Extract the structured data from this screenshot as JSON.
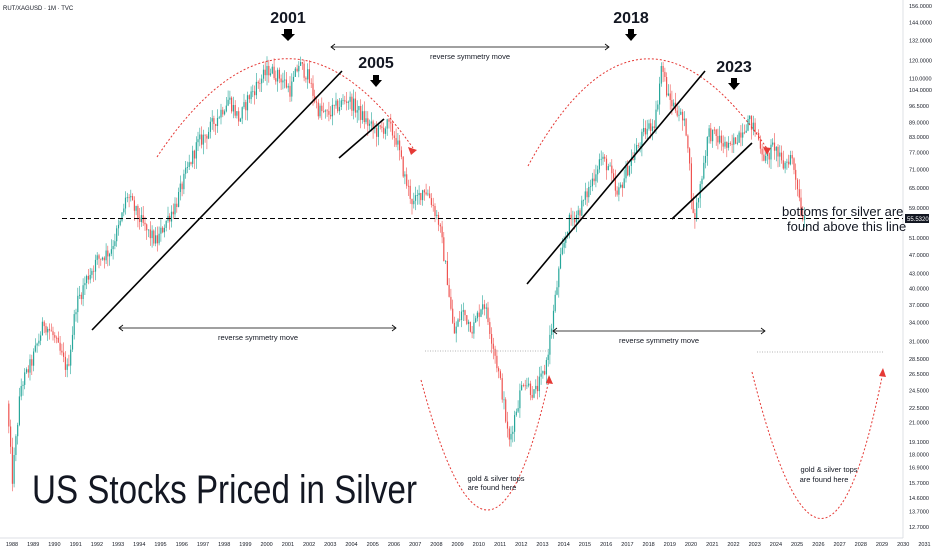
{
  "chart_data": {
    "type": "candlestick",
    "ticker": "RUT/XAGUSD · 1M · TVC",
    "title": "US Stocks Priced in Silver",
    "price_label": "55.5320",
    "yscale": "log",
    "y_ticks": [
      "156.0000",
      "144.0000",
      "132.0000",
      "120.0000",
      "110.0000",
      "104.0000",
      "96.5000",
      "89.0000",
      "83.0000",
      "77.0000",
      "71.0000",
      "65.0000",
      "59.0000",
      "55.5320",
      "51.0000",
      "47.0000",
      "43.0000",
      "40.0000",
      "37.0000",
      "34.0000",
      "31.0000",
      "28.5000",
      "26.5000",
      "24.5000",
      "22.5000",
      "21.0000",
      "19.1000",
      "18.0000",
      "16.9000",
      "15.7000",
      "14.6000",
      "13.7000",
      "12.7000"
    ],
    "x_ticks": [
      "1988",
      "1989",
      "1990",
      "1991",
      "1992",
      "1993",
      "1994",
      "1995",
      "1996",
      "1997",
      "1998",
      "1999",
      "2000",
      "2001",
      "2002",
      "2003",
      "2004",
      "2005",
      "2006",
      "2007",
      "2008",
      "2009",
      "2010",
      "2011",
      "2012",
      "2013",
      "2014",
      "2015",
      "2016",
      "2017",
      "2018",
      "2019",
      "2020",
      "2021",
      "2022",
      "2023",
      "2024",
      "2025",
      "2026",
      "2027",
      "2028",
      "2029",
      "2030",
      "2031",
      "203"
    ],
    "colors": {
      "up": "#26a69a",
      "down": "#ef5350",
      "arc": "#e53935",
      "line": "#000000"
    },
    "annotations": {
      "top_2001": "2001",
      "top_2005": "2005",
      "top_2018": "2018",
      "top_2023": "2023",
      "reverse_top": "reverse symmetry move",
      "reverse_left": "reverse symmetry move",
      "reverse_right": "reverse symmetry move",
      "support_line1": "bottoms for silver are",
      "support_line2": "found above this line",
      "gold_left1": "gold & silver tops",
      "gold_left2": "are found here",
      "gold_right1": "gold & silver tops",
      "gold_right2": "are found here"
    },
    "anchors": [
      [
        1987.85,
        23
      ],
      [
        1988.1,
        16
      ],
      [
        1988.5,
        25
      ],
      [
        1989,
        28
      ],
      [
        1989.6,
        34
      ],
      [
        1990,
        32
      ],
      [
        1990.7,
        27
      ],
      [
        1991.1,
        37
      ],
      [
        1991.6,
        42
      ],
      [
        1992.1,
        46
      ],
      [
        1992.7,
        48
      ],
      [
        1993.2,
        55
      ],
      [
        1993.5,
        63
      ],
      [
        1993.9,
        58
      ],
      [
        1994.4,
        53
      ],
      [
        1994.9,
        50
      ],
      [
        1995.3,
        55
      ],
      [
        1995.8,
        60
      ],
      [
        1996.3,
        70
      ],
      [
        1996.8,
        80
      ],
      [
        1997.3,
        85
      ],
      [
        1997.8,
        92
      ],
      [
        1998.3,
        100
      ],
      [
        1998.8,
        90
      ],
      [
        1999.2,
        100
      ],
      [
        1999.7,
        108
      ],
      [
        2000.2,
        115
      ],
      [
        2000.8,
        110
      ],
      [
        2001.2,
        104
      ],
      [
        2001.6,
        118
      ],
      [
        2002,
        112
      ],
      [
        2002.5,
        95
      ],
      [
        2002.9,
        92
      ],
      [
        2003.4,
        96
      ],
      [
        2003.9,
        100
      ],
      [
        2004.4,
        94
      ],
      [
        2004.9,
        88
      ],
      [
        2005.3,
        85
      ],
      [
        2005.8,
        88
      ],
      [
        2006.2,
        82
      ],
      [
        2006.6,
        68
      ],
      [
        2007,
        60
      ],
      [
        2007.5,
        65
      ],
      [
        2007.8,
        62
      ],
      [
        2008.2,
        55
      ],
      [
        2008.6,
        42
      ],
      [
        2008.9,
        32
      ],
      [
        2009.3,
        36
      ],
      [
        2009.8,
        33
      ],
      [
        2010.3,
        38
      ],
      [
        2010.8,
        30
      ],
      [
        2011.2,
        24
      ],
      [
        2011.5,
        19
      ],
      [
        2011.8,
        22
      ],
      [
        2012.2,
        26
      ],
      [
        2012.7,
        24
      ],
      [
        2013.2,
        27
      ],
      [
        2013.5,
        33
      ],
      [
        2013.9,
        45
      ],
      [
        2014.3,
        55
      ],
      [
        2014.8,
        58
      ],
      [
        2015.3,
        65
      ],
      [
        2015.8,
        75
      ],
      [
        2016.2,
        72
      ],
      [
        2016.6,
        62
      ],
      [
        2017,
        70
      ],
      [
        2017.5,
        78
      ],
      [
        2017.9,
        85
      ],
      [
        2018.4,
        90
      ],
      [
        2018.7,
        118
      ],
      [
        2019,
        100
      ],
      [
        2019.5,
        94
      ],
      [
        2019.9,
        85
      ],
      [
        2020.2,
        55
      ],
      [
        2020.5,
        65
      ],
      [
        2020.9,
        85
      ],
      [
        2021.4,
        82
      ],
      [
        2021.9,
        78
      ],
      [
        2022.3,
        84
      ],
      [
        2022.8,
        90
      ],
      [
        2023.2,
        84
      ],
      [
        2023.6,
        74
      ],
      [
        2024,
        80
      ],
      [
        2024.4,
        72
      ],
      [
        2024.8,
        76
      ],
      [
        2025.1,
        66
      ],
      [
        2025.3,
        57
      ]
    ]
  }
}
